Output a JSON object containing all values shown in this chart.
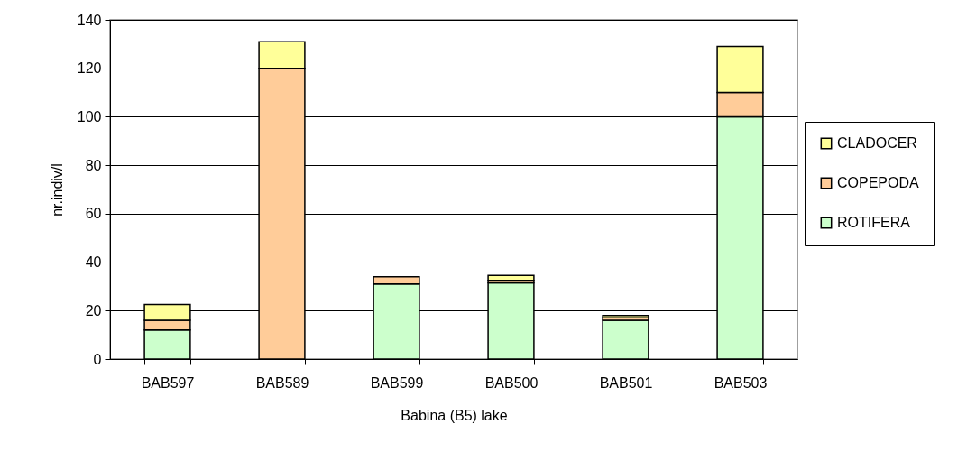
{
  "chart_data": {
    "type": "bar",
    "stacked": true,
    "xlabel": "Babina (B5) lake",
    "ylabel": "nr.indiv/l",
    "categories": [
      "BAB597",
      "BAB589",
      "BAB599",
      "BAB500",
      "BAB501",
      "BAB503"
    ],
    "series": [
      {
        "name": "ROTIFERA",
        "color": "#ccffcc",
        "values": [
          12,
          0,
          31,
          31.5,
          16,
          100
        ]
      },
      {
        "name": "COPEPODA",
        "color": "#ffcc99",
        "values": [
          4,
          120,
          3,
          1,
          1,
          10
        ]
      },
      {
        "name": "CLADOCER",
        "color": "#ffff99",
        "values": [
          6.5,
          11,
          0,
          2,
          1,
          19
        ]
      }
    ],
    "ylim": [
      0,
      140
    ],
    "yticks": [
      0,
      20,
      40,
      60,
      80,
      100,
      120,
      140
    ],
    "grid": "y",
    "legend": "right"
  }
}
